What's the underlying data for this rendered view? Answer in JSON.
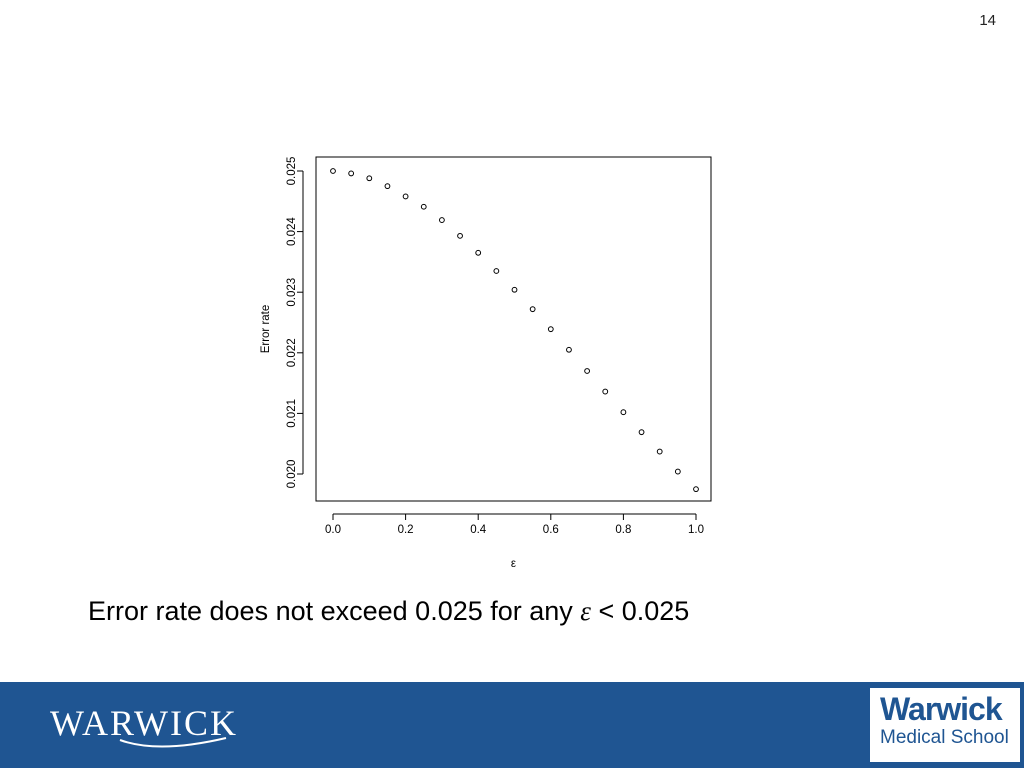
{
  "page_number": "14",
  "caption": {
    "before": "Error rate does not exceed 0.025 for any ",
    "symbol": "ε",
    "after": " < 0.025"
  },
  "footer": {
    "background": "#1f5592",
    "left_logo_text": "WARWICK",
    "right_logo_line1": "Warwick",
    "right_logo_line2": "Medical School"
  },
  "chart_data": {
    "type": "scatter",
    "title": "",
    "xlabel": "ε",
    "ylabel": "Error rate",
    "xlim": [
      0.0,
      1.0
    ],
    "ylim": [
      0.0197,
      0.0252
    ],
    "x_ticks": [
      "0.0",
      "0.2",
      "0.4",
      "0.6",
      "0.8",
      "1.0"
    ],
    "x_tick_values": [
      0.0,
      0.2,
      0.4,
      0.6,
      0.8,
      1.0
    ],
    "y_ticks": [
      "0.020",
      "0.021",
      "0.022",
      "0.023",
      "0.024",
      "0.025"
    ],
    "y_tick_values": [
      0.02,
      0.021,
      0.022,
      0.023,
      0.024,
      0.025
    ],
    "grid": false,
    "marker": "open-circle",
    "x": [
      0.0,
      0.05,
      0.1,
      0.15,
      0.2,
      0.25,
      0.3,
      0.35,
      0.4,
      0.45,
      0.5,
      0.55,
      0.6,
      0.65,
      0.7,
      0.75,
      0.8,
      0.85,
      0.9,
      0.95,
      1.0
    ],
    "y": [
      0.025,
      0.02496,
      0.02488,
      0.02475,
      0.02458,
      0.02441,
      0.02419,
      0.02393,
      0.02365,
      0.02335,
      0.02304,
      0.02272,
      0.02239,
      0.02205,
      0.0217,
      0.02136,
      0.02102,
      0.02069,
      0.02037,
      0.02004,
      0.01975
    ]
  }
}
